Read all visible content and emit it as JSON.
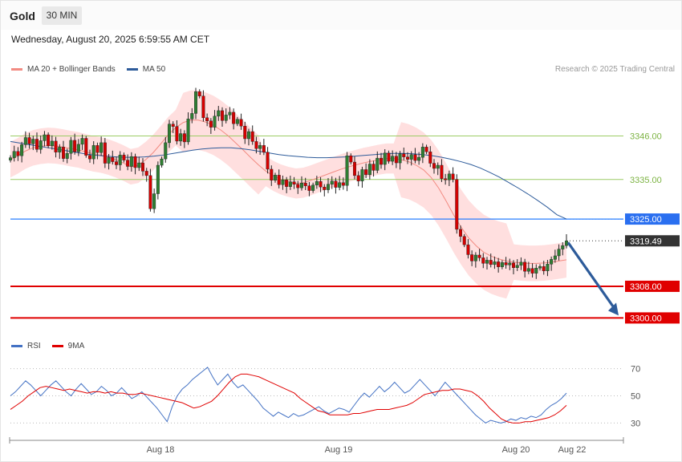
{
  "header": {
    "instrument": "Gold",
    "timeframe": "30 MIN",
    "timestamp": "Wednesday, August 20, 2025 6:59:55 AM CET",
    "copyright": "Research © 2025 Trading Central"
  },
  "legend": {
    "ma20": {
      "label": "MA 20 + Bollinger Bands",
      "color": "#f28b82"
    },
    "ma50": {
      "label": "MA 50",
      "color": "#2d5b9a"
    },
    "rsi": {
      "label": "RSI",
      "color": "#4472c4"
    },
    "rsi9ma": {
      "label": "9MA",
      "color": "#e00000"
    }
  },
  "colors": {
    "up": "#2e7d32",
    "down": "#d50000",
    "band": "#ffd9d9",
    "support_line": "#e00000",
    "pivot_line": "#2a7fff",
    "green_level": "#9ccc65",
    "forecast_arrow": "#2d5b9a"
  },
  "chart_data": {
    "type": "candlestick",
    "x_ticks": [
      "Aug 18",
      "Aug 19",
      "Aug 20",
      "Aug 22"
    ],
    "y_range": [
      3294,
      3368
    ],
    "levels": [
      {
        "value": 3346.0,
        "label": "3346.00",
        "style": "green"
      },
      {
        "value": 3335.0,
        "label": "3335.00",
        "style": "green"
      },
      {
        "value": 3325.0,
        "label": "3325.00",
        "style": "pivot"
      },
      {
        "value": 3319.49,
        "label": "3319.49",
        "style": "last"
      },
      {
        "value": 3308.0,
        "label": "3308.00",
        "style": "support"
      },
      {
        "value": 3300.0,
        "label": "3300.00",
        "style": "support"
      }
    ],
    "forecast": {
      "from": 3319.49,
      "to": 3300.0,
      "direction": "down"
    },
    "candle_closes": [
      3340.5,
      3342.1,
      3341.0,
      3343.8,
      3345.6,
      3344.0,
      3345.2,
      3342.6,
      3344.8,
      3346.3,
      3343.5,
      3344.7,
      3341.9,
      3343.2,
      3340.3,
      3341.6,
      3344.9,
      3342.0,
      3343.9,
      3345.4,
      3341.1,
      3340.2,
      3343.6,
      3341.8,
      3344.3,
      3339.1,
      3340.6,
      3339.5,
      3338.7,
      3341.2,
      3339.9,
      3338.3,
      3340.8,
      3338.0,
      3339.2,
      3337.1,
      3336.0,
      3327.6,
      3331.4,
      3338.6,
      3340.2,
      3344.3,
      3349.0,
      3348.4,
      3344.7,
      3346.6,
      3344.5,
      3350.3,
      3351.7,
      3357.2,
      3356.1,
      3350.6,
      3349.8,
      3348.2,
      3351.0,
      3352.4,
      3349.9,
      3351.3,
      3352.0,
      3349.1,
      3350.2,
      3348.5,
      3345.3,
      3347.1,
      3344.6,
      3342.8,
      3343.6,
      3341.9,
      3337.6,
      3334.8,
      3336.1,
      3333.7,
      3334.9,
      3333.2,
      3334.4,
      3333.8,
      3332.9,
      3334.1,
      3333.4,
      3332.2,
      3333.6,
      3334.5,
      3333.1,
      3332.4,
      3333.8,
      3334.6,
      3333.0,
      3334.2,
      3333.5,
      3341.0,
      3339.4,
      3336.0,
      3334.6,
      3337.5,
      3336.2,
      3338.9,
      3337.3,
      3340.4,
      3338.8,
      3341.7,
      3339.6,
      3340.9,
      3339.2,
      3341.5,
      3340.7,
      3340.1,
      3341.3,
      3339.8,
      3340.6,
      3343.2,
      3342.0,
      3339.1,
      3337.8,
      3338.6,
      3335.2,
      3334.9,
      3336.4,
      3335.0,
      3322.4,
      3320.6,
      3318.5,
      3316.0,
      3314.4,
      3315.9,
      3315.2,
      3313.8,
      3314.6,
      3313.5,
      3314.2,
      3312.9,
      3314.0,
      3313.4,
      3313.9,
      3312.7,
      3313.3,
      3314.1,
      3311.8,
      3312.5,
      3311.3,
      3312.6,
      3313.0,
      3311.9,
      3313.6,
      3314.8,
      3315.7,
      3317.4,
      3318.3,
      3319.49
    ],
    "ma20": [
      3340.0,
      3341.0,
      3342.2,
      3343.0,
      3343.4,
      3343.6,
      3343.5,
      3343.2,
      3342.8,
      3342.5,
      3342.0,
      3341.5,
      3341.2,
      3340.7,
      3340.0,
      3339.2,
      3338.2,
      3338.6,
      3340.0,
      3341.8,
      3344.0,
      3346.3,
      3348.1,
      3349.4,
      3350.0,
      3350.0,
      3349.5,
      3348.7,
      3347.5,
      3346.0,
      3344.2,
      3342.4,
      3340.5,
      3338.7,
      3337.1,
      3335.9,
      3335.0,
      3334.4,
      3334.0,
      3334.2,
      3334.8,
      3335.5,
      3336.2,
      3336.9,
      3337.6,
      3338.2,
      3338.7,
      3339.2,
      3339.6,
      3340.0,
      3340.3,
      3340.3,
      3340.0,
      3339.5,
      3338.6,
      3337.4,
      3335.5,
      3332.8,
      3329.5,
      3326.0,
      3322.9,
      3320.2,
      3318.2,
      3316.6,
      3315.6,
      3314.9,
      3314.4,
      3314.1,
      3313.9,
      3313.8,
      3313.8,
      3313.9,
      3314.1,
      3314.4,
      3314.7
    ],
    "ma50": [
      3344.6,
      3344.2,
      3343.8,
      3343.4,
      3343.0,
      3342.6,
      3342.2,
      3341.8,
      3341.4,
      3341.1,
      3340.9,
      3340.7,
      3340.6,
      3340.6,
      3340.7,
      3340.9,
      3341.2,
      3341.6,
      3342.0,
      3342.4,
      3342.7,
      3342.9,
      3343.0,
      3343.0,
      3342.8,
      3342.5,
      3342.1,
      3341.7,
      3341.3,
      3341.0,
      3340.8,
      3340.6,
      3340.5,
      3340.5,
      3340.6,
      3340.7,
      3340.9,
      3341.1,
      3341.3,
      3341.5,
      3341.6,
      3341.6,
      3341.5,
      3341.3,
      3341.0,
      3340.6,
      3340.1,
      3339.5,
      3338.8,
      3337.9,
      3336.8,
      3335.6,
      3334.2,
      3332.8,
      3331.3,
      3329.7,
      3328.0,
      3326.1,
      3325.0
    ],
    "rsi": {
      "y_range": [
        22,
        78
      ],
      "ticks": [
        70,
        50,
        30
      ],
      "rsi_values": [
        50,
        53,
        57,
        61,
        58,
        54,
        50,
        54,
        58,
        61,
        57,
        53,
        50,
        55,
        59,
        55,
        51,
        53,
        57,
        54,
        50,
        52,
        56,
        52,
        48,
        50,
        53,
        49,
        45,
        41,
        36,
        31,
        42,
        50,
        55,
        58,
        62,
        65,
        68,
        71,
        64,
        58,
        62,
        66,
        60,
        56,
        58,
        54,
        50,
        46,
        41,
        38,
        35,
        38,
        36,
        34,
        37,
        35,
        36,
        38,
        40,
        42,
        39,
        37,
        39,
        41,
        40,
        38,
        43,
        48,
        52,
        49,
        53,
        57,
        53,
        56,
        60,
        56,
        52,
        54,
        58,
        62,
        58,
        54,
        50,
        55,
        60,
        56,
        52,
        48,
        44,
        40,
        36,
        33,
        30,
        32,
        31,
        30,
        31,
        33,
        32,
        34,
        33,
        35,
        34,
        36,
        40,
        43,
        45,
        48,
        52
      ],
      "ma9_values": [
        40,
        43,
        46,
        50,
        53,
        56,
        57,
        56,
        55,
        54,
        55,
        54,
        53,
        52,
        53,
        53,
        52,
        53,
        52,
        52,
        51,
        51,
        52,
        51,
        50,
        49,
        48,
        47,
        46,
        45,
        43,
        41,
        42,
        44,
        46,
        50,
        55,
        60,
        64,
        66,
        66,
        65,
        64,
        62,
        60,
        58,
        56,
        54,
        52,
        48,
        45,
        42,
        39,
        38,
        36,
        36,
        36,
        36,
        37,
        37,
        38,
        39,
        40,
        40,
        40,
        41,
        42,
        43,
        45,
        48,
        51,
        52,
        53,
        54,
        54,
        55,
        55,
        54,
        53,
        50,
        46,
        41,
        37,
        33,
        31,
        30,
        30,
        31,
        31,
        32,
        33,
        34,
        36,
        39,
        43
      ]
    }
  }
}
